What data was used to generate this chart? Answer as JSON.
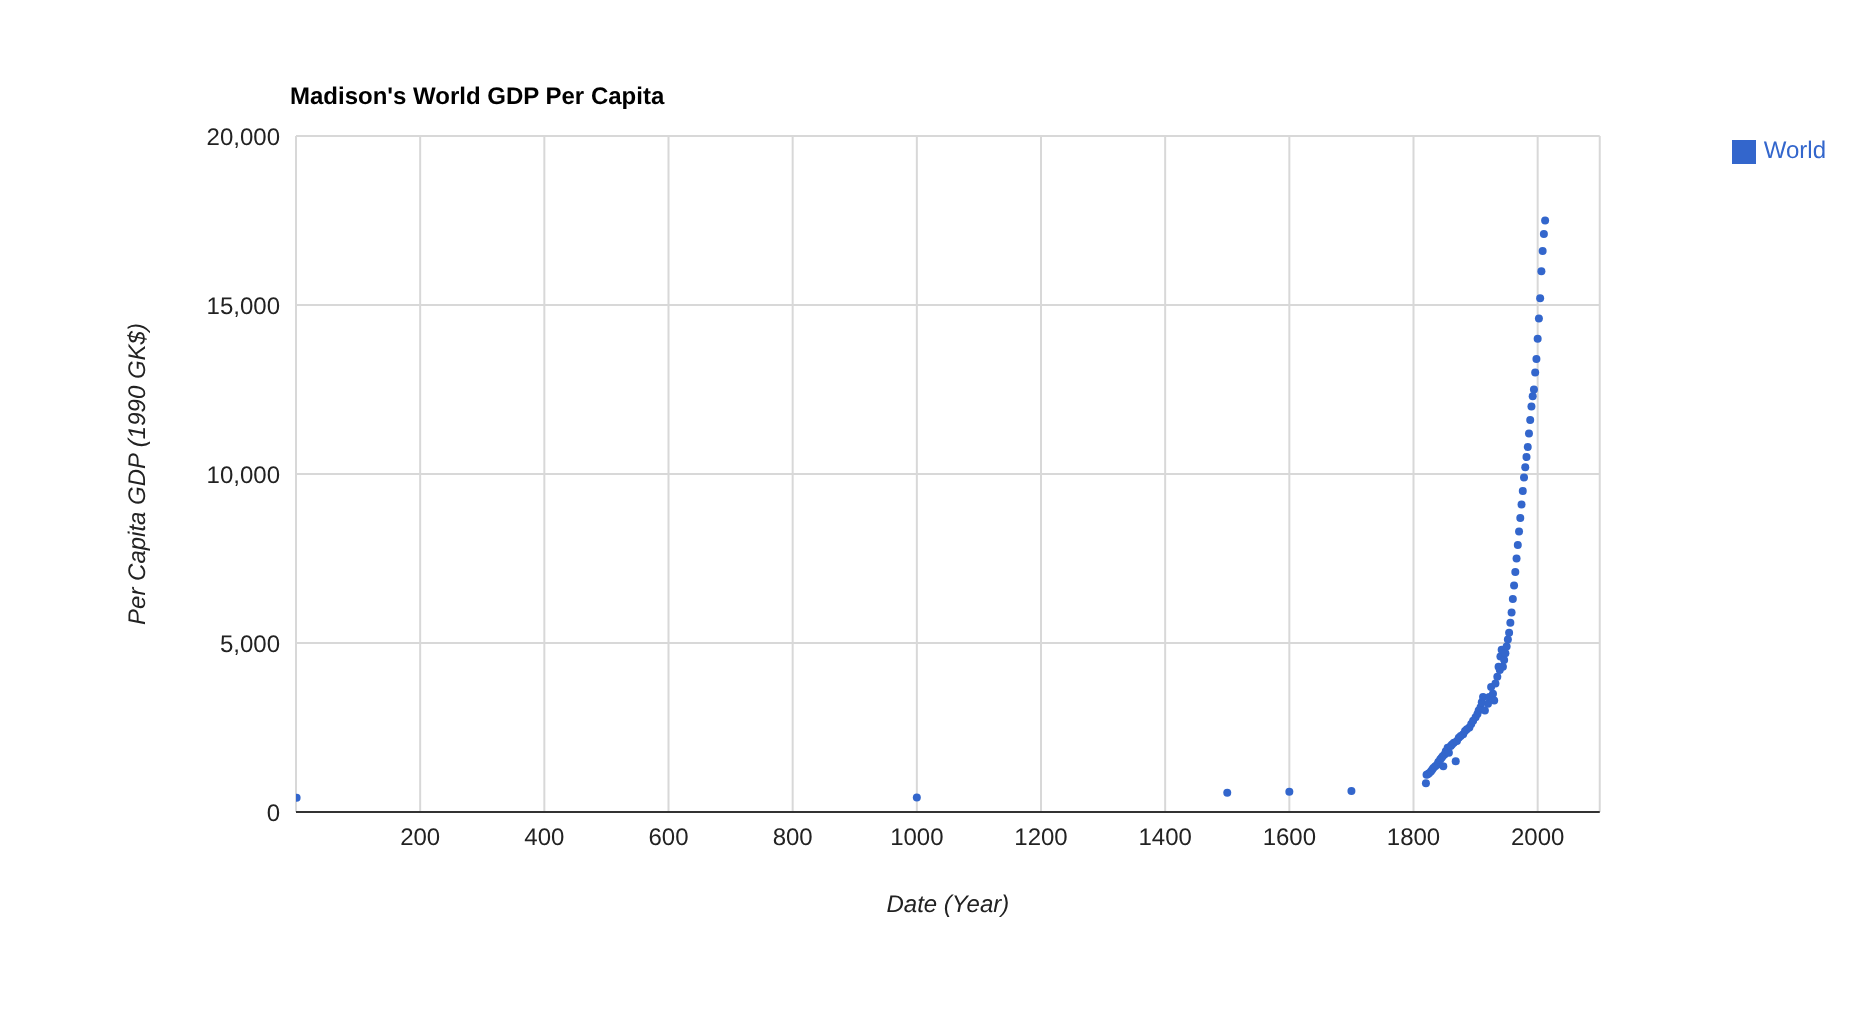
{
  "chart_data": {
    "type": "scatter",
    "title": "Madison's World GDP Per Capita",
    "xlabel": "Date (Year)",
    "ylabel": "Per Capita GDP (1990 GK$)",
    "xlim": [
      0,
      2100
    ],
    "xticks": [
      200,
      400,
      600,
      800,
      1000,
      1200,
      1400,
      1600,
      1800,
      2000
    ],
    "ylim": [
      0,
      20000
    ],
    "yticks": [
      0,
      {
        "value": 5000,
        "label": "5,000"
      },
      {
        "value": 10000,
        "label": "10,000"
      },
      {
        "value": 15000,
        "label": "15,000"
      },
      {
        "value": 20000,
        "label": "20,000"
      }
    ],
    "grid": true,
    "legend": "top right",
    "marker": "circle",
    "series": [
      {
        "name": "World",
        "color": "#3366cc",
        "x": [
          1,
          1000,
          1500,
          1600,
          1700,
          1820,
          1821,
          1823,
          1825,
          1828,
          1830,
          1832,
          1835,
          1838,
          1840,
          1843,
          1845,
          1847,
          1848,
          1850,
          1852,
          1855,
          1857,
          1860,
          1862,
          1865,
          1868,
          1870,
          1873,
          1876,
          1880,
          1883,
          1886,
          1890,
          1893,
          1896,
          1900,
          1903,
          1905,
          1908,
          1910,
          1912,
          1915,
          1920,
          1922,
          1925,
          1928,
          1930,
          1932,
          1935,
          1937,
          1939,
          1940,
          1942,
          1944,
          1946,
          1948,
          1950,
          1952,
          1954,
          1956,
          1958,
          1960,
          1962,
          1964,
          1966,
          1968,
          1970,
          1972,
          1974,
          1976,
          1978,
          1980,
          1982,
          1984,
          1986,
          1988,
          1990,
          1992,
          1994,
          1996,
          1998,
          2000,
          2002,
          2004,
          2006,
          2008,
          2010,
          2012
        ],
        "values": [
          420,
          430,
          570,
          600,
          620,
          850,
          1100,
          1120,
          1150,
          1200,
          1250,
          1300,
          1350,
          1400,
          1480,
          1550,
          1600,
          1650,
          1350,
          1700,
          1800,
          1900,
          1750,
          1950,
          2000,
          2050,
          1500,
          2100,
          2200,
          2250,
          2300,
          2400,
          2450,
          2500,
          2600,
          2700,
          2800,
          2900,
          3000,
          3100,
          3250,
          3400,
          3000,
          3200,
          3400,
          3700,
          3500,
          3300,
          3800,
          4000,
          4300,
          4200,
          4600,
          4800,
          4300,
          4500,
          4700,
          4900,
          5100,
          5300,
          5600,
          5900,
          6300,
          6700,
          7100,
          7500,
          7900,
          8300,
          8700,
          9100,
          9500,
          9900,
          10200,
          10500,
          10800,
          11200,
          11600,
          12000,
          12300,
          12500,
          13000,
          13400,
          14000,
          14600,
          15200,
          16000,
          16600,
          17100,
          17500
        ]
      }
    ]
  }
}
